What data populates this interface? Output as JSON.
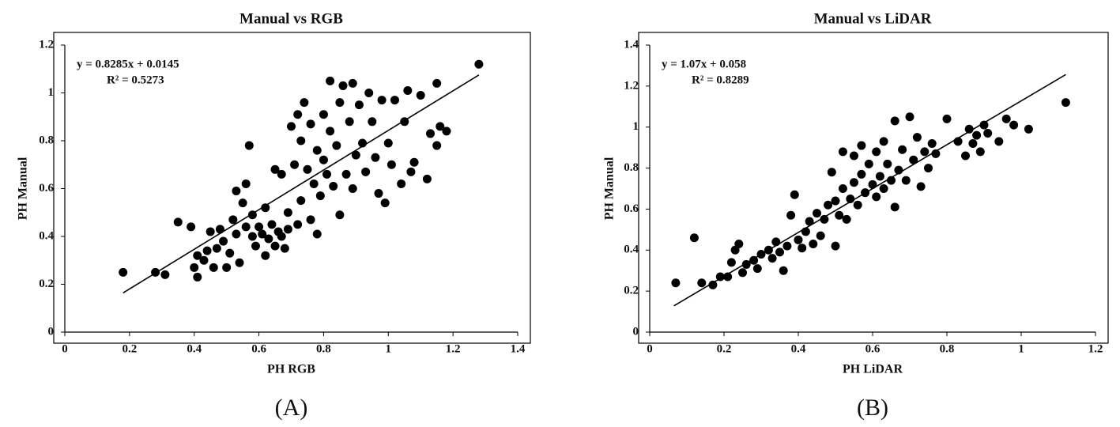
{
  "chart_data": [
    {
      "type": "scatter",
      "title": "Manual vs RGB",
      "x_label": "PH RGB",
      "y_label": "PH Manual",
      "panel_label": "(A)",
      "annotations": [
        "y = 0.8285x + 0.0145",
        "R² = 0.5273"
      ],
      "color": "#000000",
      "x": [
        0.18,
        0.28,
        0.31,
        0.35,
        0.39,
        0.4,
        0.41,
        0.41,
        0.43,
        0.44,
        0.45,
        0.46,
        0.47,
        0.48,
        0.49,
        0.5,
        0.51,
        0.52,
        0.53,
        0.53,
        0.54,
        0.55,
        0.56,
        0.56,
        0.57,
        0.58,
        0.58,
        0.59,
        0.6,
        0.61,
        0.62,
        0.62,
        0.63,
        0.64,
        0.65,
        0.65,
        0.66,
        0.67,
        0.67,
        0.68,
        0.69,
        0.69,
        0.7,
        0.71,
        0.72,
        0.72,
        0.73,
        0.73,
        0.74,
        0.75,
        0.76,
        0.76,
        0.77,
        0.78,
        0.78,
        0.79,
        0.8,
        0.8,
        0.81,
        0.82,
        0.82,
        0.83,
        0.84,
        0.85,
        0.85,
        0.86,
        0.87,
        0.88,
        0.89,
        0.89,
        0.9,
        0.91,
        0.92,
        0.93,
        0.94,
        0.95,
        0.96,
        0.97,
        0.98,
        0.99,
        1.0,
        1.01,
        1.02,
        1.04,
        1.05,
        1.06,
        1.07,
        1.08,
        1.1,
        1.12,
        1.13,
        1.15,
        1.15,
        1.16,
        1.18,
        1.28
      ],
      "values": [
        0.25,
        0.25,
        0.24,
        0.46,
        0.44,
        0.27,
        0.32,
        0.23,
        0.3,
        0.34,
        0.42,
        0.27,
        0.35,
        0.43,
        0.38,
        0.27,
        0.33,
        0.47,
        0.41,
        0.59,
        0.29,
        0.54,
        0.44,
        0.62,
        0.78,
        0.4,
        0.49,
        0.36,
        0.44,
        0.41,
        0.52,
        0.32,
        0.39,
        0.45,
        0.68,
        0.36,
        0.42,
        0.4,
        0.66,
        0.35,
        0.5,
        0.43,
        0.86,
        0.7,
        0.45,
        0.91,
        0.55,
        0.8,
        0.96,
        0.68,
        0.47,
        0.87,
        0.62,
        0.41,
        0.76,
        0.57,
        0.72,
        0.91,
        0.66,
        0.84,
        1.05,
        0.61,
        0.78,
        0.49,
        0.96,
        1.03,
        0.66,
        0.88,
        0.6,
        1.04,
        0.74,
        0.95,
        0.79,
        0.67,
        1.0,
        0.88,
        0.73,
        0.58,
        0.97,
        0.54,
        0.79,
        0.7,
        0.97,
        0.62,
        0.88,
        1.01,
        0.67,
        0.71,
        0.99,
        0.64,
        0.83,
        0.78,
        1.04,
        0.86,
        0.84,
        1.12
      ],
      "trendline": {
        "x": [
          0.18,
          1.28
        ],
        "values": [
          0.164,
          1.075
        ]
      },
      "xlim": [
        0,
        1.4
      ],
      "xticks": [
        0,
        0.2,
        0.4,
        0.6,
        0.8,
        1,
        1.2,
        1.4
      ],
      "ylim": [
        0,
        1.2
      ],
      "yticks": [
        0,
        0.2,
        0.4,
        0.6,
        0.8,
        1,
        1.2
      ]
    },
    {
      "type": "scatter",
      "title": "Manual vs LiDAR",
      "x_label": "PH LiDAR",
      "y_label": "PH Manual",
      "panel_label": "(B)",
      "annotations": [
        "y = 1.07x + 0.058",
        "R² = 0.8289"
      ],
      "color": "#000000",
      "x": [
        0.07,
        0.12,
        0.14,
        0.17,
        0.19,
        0.21,
        0.22,
        0.23,
        0.24,
        0.25,
        0.26,
        0.28,
        0.29,
        0.3,
        0.32,
        0.33,
        0.34,
        0.35,
        0.36,
        0.37,
        0.38,
        0.39,
        0.4,
        0.41,
        0.42,
        0.43,
        0.44,
        0.45,
        0.46,
        0.47,
        0.48,
        0.49,
        0.5,
        0.5,
        0.51,
        0.52,
        0.52,
        0.53,
        0.54,
        0.55,
        0.55,
        0.56,
        0.57,
        0.57,
        0.58,
        0.59,
        0.6,
        0.61,
        0.61,
        0.62,
        0.63,
        0.63,
        0.64,
        0.65,
        0.66,
        0.66,
        0.67,
        0.68,
        0.69,
        0.7,
        0.71,
        0.72,
        0.73,
        0.74,
        0.75,
        0.76,
        0.77,
        0.8,
        0.83,
        0.85,
        0.86,
        0.87,
        0.88,
        0.89,
        0.9,
        0.91,
        0.94,
        0.96,
        0.98,
        1.02,
        1.12
      ],
      "values": [
        0.24,
        0.46,
        0.24,
        0.23,
        0.27,
        0.27,
        0.34,
        0.4,
        0.43,
        0.29,
        0.33,
        0.35,
        0.31,
        0.38,
        0.4,
        0.36,
        0.44,
        0.39,
        0.3,
        0.42,
        0.57,
        0.67,
        0.45,
        0.41,
        0.49,
        0.54,
        0.43,
        0.58,
        0.47,
        0.55,
        0.62,
        0.78,
        0.42,
        0.64,
        0.57,
        0.7,
        0.88,
        0.55,
        0.65,
        0.73,
        0.86,
        0.62,
        0.77,
        0.91,
        0.68,
        0.82,
        0.72,
        0.66,
        0.88,
        0.76,
        0.7,
        0.93,
        0.82,
        0.74,
        1.03,
        0.61,
        0.79,
        0.89,
        0.74,
        1.05,
        0.84,
        0.95,
        0.71,
        0.88,
        0.8,
        0.92,
        0.87,
        1.04,
        0.93,
        0.86,
        0.99,
        0.92,
        0.96,
        0.88,
        1.01,
        0.97,
        0.93,
        1.04,
        1.01,
        0.99,
        1.12
      ],
      "trendline": {
        "x": [
          0.065,
          1.12
        ],
        "values": [
          0.128,
          1.256
        ]
      },
      "xlim": [
        0,
        1.2
      ],
      "xticks": [
        0,
        0.2,
        0.4,
        0.6,
        0.8,
        1,
        1.2
      ],
      "ylim": [
        0,
        1.4
      ],
      "yticks": [
        0,
        0.2,
        0.4,
        0.6,
        0.8,
        1,
        1.2,
        1.4
      ]
    }
  ]
}
